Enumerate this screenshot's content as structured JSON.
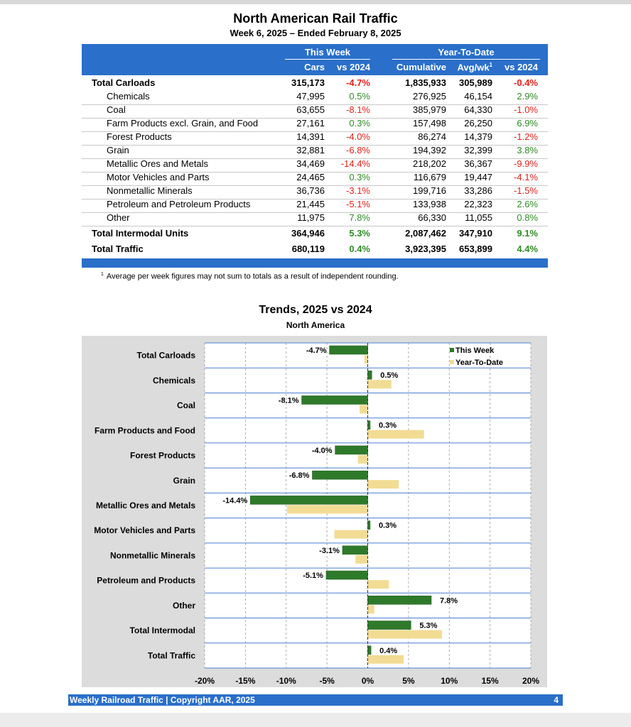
{
  "header": {
    "title": "North American Rail Traffic",
    "subtitle": "Week 6, 2025 – Ended February 8, 2025"
  },
  "table": {
    "group_this_week": "This Week",
    "group_ytd": "Year-To-Date",
    "col_cars": "Cars",
    "col_vs_week": "vs 2024",
    "col_cumulative": "Cumulative",
    "col_avgwk": "Avg/wk",
    "col_avgwk_sup": "1",
    "col_vs_ytd": "vs 2024",
    "rows": [
      {
        "label": "Total Carloads",
        "cars": "315,173",
        "vs_week": "-4.7%",
        "cumulative": "1,835,933",
        "avg": "305,989",
        "vs_ytd": "-0.4%",
        "kind": "total"
      },
      {
        "label": "Chemicals",
        "cars": "47,995",
        "vs_week": "0.5%",
        "cumulative": "276,925",
        "avg": "46,154",
        "vs_ytd": "2.9%",
        "kind": "minor"
      },
      {
        "label": "Coal",
        "cars": "63,655",
        "vs_week": "-8.1%",
        "cumulative": "385,979",
        "avg": "64,330",
        "vs_ytd": "-1.0%",
        "kind": "minor"
      },
      {
        "label": "Farm Products excl. Grain, and Food",
        "cars": "27,161",
        "vs_week": "0.3%",
        "cumulative": "157,498",
        "avg": "26,250",
        "vs_ytd": "6.9%",
        "kind": "minor"
      },
      {
        "label": "Forest Products",
        "cars": "14,391",
        "vs_week": "-4.0%",
        "cumulative": "86,274",
        "avg": "14,379",
        "vs_ytd": "-1.2%",
        "kind": "minor"
      },
      {
        "label": "Grain",
        "cars": "32,881",
        "vs_week": "-6.8%",
        "cumulative": "194,392",
        "avg": "32,399",
        "vs_ytd": "3.8%",
        "kind": "minor"
      },
      {
        "label": "Metallic Ores and Metals",
        "cars": "34,469",
        "vs_week": "-14.4%",
        "cumulative": "218,202",
        "avg": "36,367",
        "vs_ytd": "-9.9%",
        "kind": "minor"
      },
      {
        "label": "Motor Vehicles and Parts",
        "cars": "24,465",
        "vs_week": "0.3%",
        "cumulative": "116,679",
        "avg": "19,447",
        "vs_ytd": "-4.1%",
        "kind": "minor"
      },
      {
        "label": "Nonmetallic Minerals",
        "cars": "36,736",
        "vs_week": "-3.1%",
        "cumulative": "199,716",
        "avg": "33,286",
        "vs_ytd": "-1.5%",
        "kind": "minor"
      },
      {
        "label": "Petroleum and Petroleum Products",
        "cars": "21,445",
        "vs_week": "-5.1%",
        "cumulative": "133,938",
        "avg": "22,323",
        "vs_ytd": "2.6%",
        "kind": "minor"
      },
      {
        "label": "Other",
        "cars": "11,975",
        "vs_week": "7.8%",
        "cumulative": "66,330",
        "avg": "11,055",
        "vs_ytd": "0.8%",
        "kind": "minor"
      },
      {
        "label": "Total Intermodal Units",
        "cars": "364,946",
        "vs_week": "5.3%",
        "cumulative": "2,087,462",
        "avg": "347,910",
        "vs_ytd": "9.1%",
        "kind": "total"
      },
      {
        "label": "Total Traffic",
        "cars": "680,119",
        "vs_week": "0.4%",
        "cumulative": "3,923,395",
        "avg": "653,899",
        "vs_ytd": "4.4%",
        "kind": "total"
      }
    ],
    "footnote_mark": "1",
    "footnote_text": "Average per week figures may not sum to totals as a result of independent rounding."
  },
  "chart_data": {
    "type": "bar",
    "orientation": "horizontal",
    "title": "Trends, 2025 vs 2024",
    "subtitle": "North America",
    "categories": [
      "Total Carloads",
      "Chemicals",
      "Coal",
      "Farm Products and Food",
      "Forest Products",
      "Grain",
      "Metallic Ores and Metals",
      "Motor Vehicles and Parts",
      "Nonmetallic Minerals",
      "Petroleum and Products",
      "Other",
      "Total Intermodal",
      "Total Traffic"
    ],
    "series": [
      {
        "name": "This Week",
        "values": [
          -4.7,
          0.5,
          -8.1,
          0.3,
          -4.0,
          -6.8,
          -14.4,
          0.3,
          -3.1,
          -5.1,
          7.8,
          5.3,
          0.4
        ],
        "labels": [
          "-4.7%",
          "0.5%",
          "-8.1%",
          "0.3%",
          "-4.0%",
          "-6.8%",
          "-14.4%",
          "0.3%",
          "-3.1%",
          "-5.1%",
          "7.8%",
          "5.3%",
          "0.4%"
        ],
        "color": "#2e7a2a"
      },
      {
        "name": "Year-To-Date",
        "values": [
          -0.4,
          2.9,
          -1.0,
          6.9,
          -1.2,
          3.8,
          -9.9,
          -4.1,
          -1.5,
          2.6,
          0.8,
          9.1,
          4.4
        ],
        "color": "#f2dc94"
      }
    ],
    "xlim": [
      -20,
      20
    ],
    "xticks": [
      "-20%",
      "-15%",
      "-10%",
      "-5%",
      "0%",
      "5%",
      "10%",
      "15%",
      "20%"
    ],
    "grid": true,
    "legend": "top-right"
  },
  "footer": {
    "left": "Weekly Railroad Traffic | Copyright AAR, 2025",
    "page": "4"
  }
}
